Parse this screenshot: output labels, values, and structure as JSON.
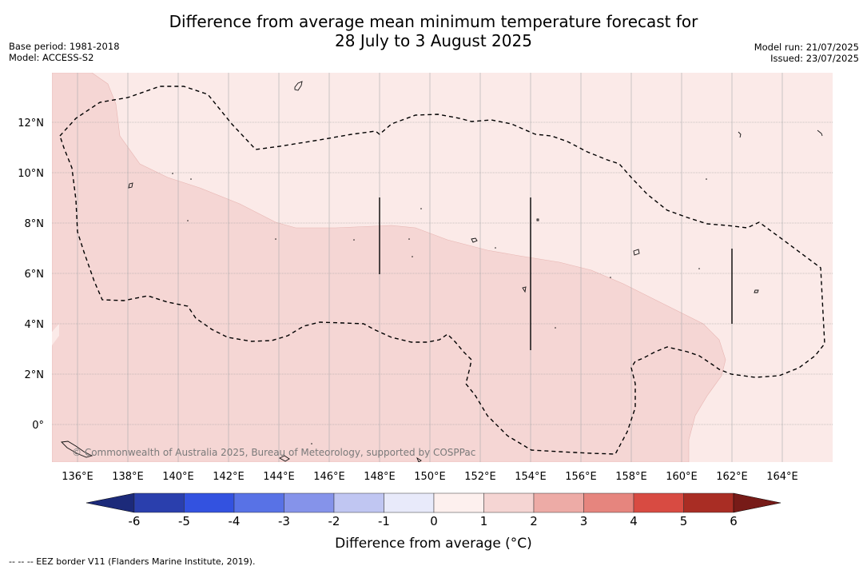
{
  "title_line1": "Difference from average mean minimum temperature forecast for",
  "title_line2": "28 July to 3 August 2025",
  "base_period": "Base period: 1981-2018",
  "model": "Model: ACCESS-S2",
  "model_run": "Model run: 21/07/2025",
  "issued": "Issued: 23/07/2025",
  "copyright": "© Commonwealth of Australia 2025, Bureau of Meteorology, supported by COSPPac",
  "lon_labels": [
    "136°E",
    "138°E",
    "140°E",
    "142°E",
    "144°E",
    "146°E",
    "148°E",
    "150°E",
    "152°E",
    "154°E",
    "156°E",
    "158°E",
    "160°E",
    "162°E",
    "164°E"
  ],
  "lat_labels": [
    "12°N",
    "10°N",
    "8°N",
    "6°N",
    "4°N",
    "2°N",
    "0°"
  ],
  "colorbar": {
    "ticks": [
      "-6",
      "-5",
      "-4",
      "-3",
      "-2",
      "-1",
      "0",
      "1",
      "2",
      "3",
      "4",
      "5",
      "6"
    ],
    "colors": [
      "#2a3fad",
      "#3352e0",
      "#5872e6",
      "#8593ea",
      "#c0c6f2",
      "#e8eafa",
      "#fdf0ee",
      "#f5d5d3",
      "#edaba6",
      "#e6857e",
      "#d84b42",
      "#a92d24"
    ],
    "under_color": "#1c2a7a",
    "over_color": "#771b18",
    "label": "Difference from average (°C)"
  },
  "legend_note": "--  --  -- EEZ border V11 (Flanders Marine Institute, 2019).",
  "map_fill": {
    "class_0_to_1": "#fbeae8",
    "class_1_to_2": "#f5d6d4"
  }
}
